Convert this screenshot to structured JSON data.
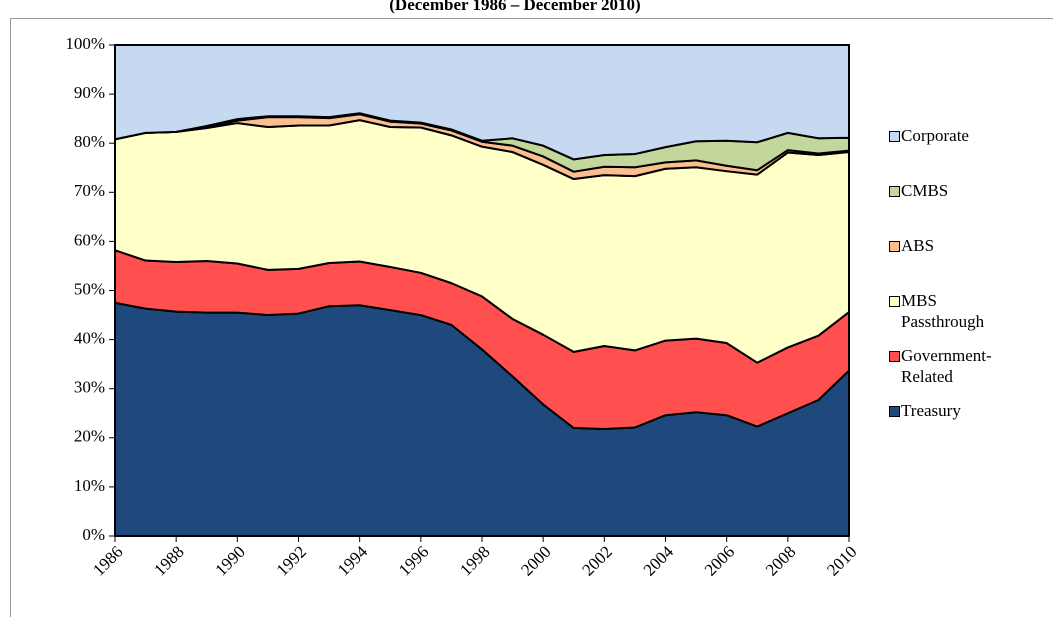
{
  "chart_data": {
    "type": "stacked-area",
    "subtitle": "(December 1986 – December 2010)",
    "x": [
      1986,
      1987,
      1988,
      1989,
      1990,
      1991,
      1992,
      1993,
      1994,
      1995,
      1996,
      1997,
      1998,
      1999,
      2000,
      2001,
      2002,
      2003,
      2004,
      2005,
      2006,
      2007,
      2008,
      2009,
      2010
    ],
    "xlim": [
      1986,
      2010
    ],
    "xticks": [
      1986,
      1988,
      1990,
      1992,
      1994,
      1996,
      1998,
      2000,
      2002,
      2004,
      2006,
      2008,
      2010
    ],
    "ylim": [
      0,
      100
    ],
    "yticks": [
      {
        "value": 0,
        "label": "0%"
      },
      {
        "value": 10,
        "label": "10%"
      },
      {
        "value": 20,
        "label": "20%"
      },
      {
        "value": 30,
        "label": "30%"
      },
      {
        "value": 40,
        "label": "40%"
      },
      {
        "value": 50,
        "label": "50%"
      },
      {
        "value": 60,
        "label": "60%"
      },
      {
        "value": 70,
        "label": "70%"
      },
      {
        "value": 80,
        "label": "80%"
      },
      {
        "value": 90,
        "label": "90%"
      },
      {
        "value": 100,
        "label": "100%"
      }
    ],
    "grid": false,
    "series": [
      {
        "name": "Treasury",
        "color": "#1f497d",
        "values": [
          47.5,
          46.3,
          45.7,
          45.5,
          45.5,
          45.0,
          45.3,
          46.8,
          47.0,
          46.0,
          45.0,
          43.0,
          38.0,
          32.5,
          26.8,
          22.0,
          21.8,
          22.1,
          24.6,
          25.2,
          24.6,
          22.3,
          25.0,
          27.7,
          33.7
        ]
      },
      {
        "name": "Government-Related",
        "color": "#ff4f4f",
        "values": [
          10.7,
          9.8,
          10.1,
          10.5,
          10.0,
          9.2,
          9.1,
          8.8,
          8.9,
          8.8,
          8.6,
          8.5,
          10.8,
          11.7,
          14.2,
          15.5,
          16.9,
          15.7,
          15.2,
          15.0,
          14.7,
          13.0,
          13.4,
          13.1,
          11.9
        ]
      },
      {
        "name": "MBS Passthrough",
        "color": "#ffffc8",
        "values": [
          22.6,
          26.0,
          26.5,
          27.1,
          28.6,
          29.1,
          29.2,
          28.0,
          28.8,
          28.5,
          29.6,
          30.1,
          30.5,
          34.0,
          34.6,
          35.2,
          34.8,
          35.5,
          35.0,
          34.9,
          35.0,
          38.3,
          39.7,
          36.8,
          32.6
        ]
      },
      {
        "name": "ABS",
        "color": "#fbbf8f",
        "values": [
          0,
          0,
          0,
          0.2,
          0.5,
          2.0,
          1.7,
          1.5,
          1.2,
          1.1,
          0.8,
          1.0,
          1.0,
          1.3,
          1.7,
          1.5,
          1.7,
          1.8,
          1.3,
          1.4,
          1.1,
          0.9,
          0.5,
          0.3,
          0.3
        ]
      },
      {
        "name": "CMBS",
        "color": "#c3d69b",
        "values": [
          0,
          0,
          0,
          0.2,
          0.3,
          0.2,
          0.2,
          0.2,
          0.2,
          0.2,
          0.2,
          0.2,
          0.2,
          1.5,
          2.2,
          2.5,
          2.4,
          2.7,
          3.1,
          3.9,
          5.1,
          5.7,
          3.5,
          3.1,
          2.6
        ]
      },
      {
        "name": "Corporate",
        "color": "#c6d9f0",
        "values": [
          19.2,
          17.9,
          17.7,
          16.5,
          15.1,
          14.5,
          14.5,
          14.7,
          13.9,
          15.4,
          15.8,
          17.2,
          19.5,
          19.0,
          20.5,
          23.3,
          22.4,
          22.2,
          20.8,
          19.6,
          19.5,
          19.8,
          17.9,
          19.0,
          18.9
        ]
      }
    ]
  }
}
